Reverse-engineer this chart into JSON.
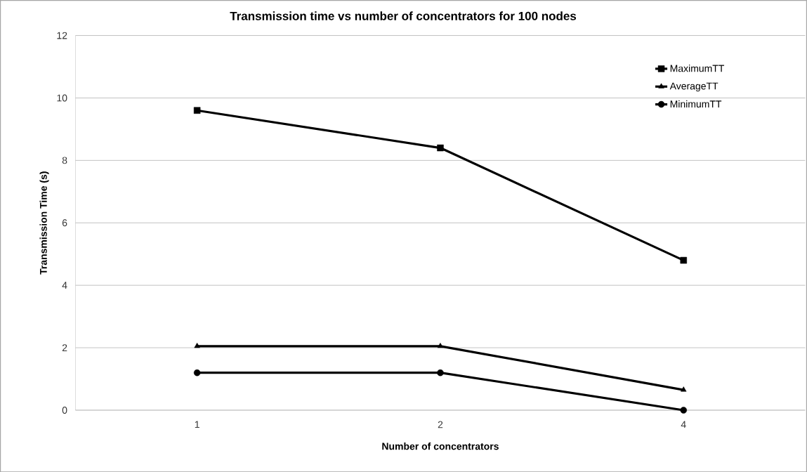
{
  "chart_data": {
    "type": "line",
    "title": "Transmission time vs number of concentrators for 100 nodes",
    "xlabel": "Number of concentrators",
    "ylabel": "Transmission Time (s)",
    "categories": [
      "1",
      "2",
      "4"
    ],
    "series": [
      {
        "name": "MaximumTT",
        "color": "#000000",
        "marker": "square",
        "values": [
          9.6,
          8.4,
          4.8
        ]
      },
      {
        "name": "AverageTT",
        "color": "#000000",
        "marker": "triangle",
        "values": [
          2.05,
          2.05,
          0.65
        ]
      },
      {
        "name": "MinimumTT",
        "color": "#000000",
        "marker": "circle",
        "values": [
          1.2,
          1.2,
          0
        ]
      }
    ],
    "ylim": [
      0,
      12
    ],
    "yticks": [
      0,
      2,
      4,
      6,
      8,
      10,
      12
    ],
    "grid": "y",
    "legend": "top right",
    "line_style": "solid"
  }
}
